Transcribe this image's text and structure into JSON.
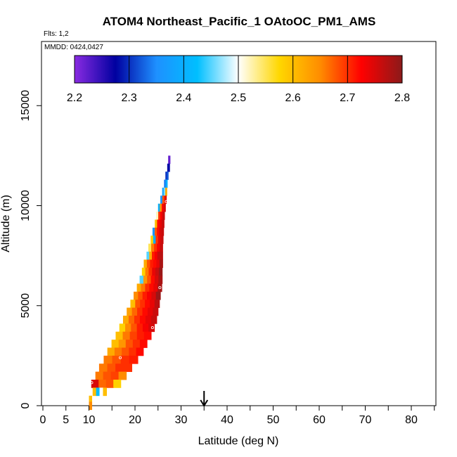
{
  "chart_data": {
    "type": "heatmap",
    "title": "ATOM4 Northeast_Pacific_1 OAtoOC_PM1_AMS",
    "flights_label": "Flts: 1,2",
    "dates_label": "MMDD: 0424,0427",
    "xlabel": "Latitude (deg N)",
    "ylabel": "Altitude (m)",
    "xlim": [
      0,
      85
    ],
    "ylim": [
      0,
      18000
    ],
    "x_ticks": [
      0,
      5,
      10,
      20,
      30,
      40,
      50,
      60,
      70,
      80
    ],
    "x_tick_labels": [
      "0",
      "5",
      "10",
      "20",
      "30",
      "40",
      "50",
      "60",
      "70",
      "80"
    ],
    "x_minor_ticks": [
      15,
      25,
      35,
      45,
      55,
      65,
      75,
      85
    ],
    "y_ticks": [
      0,
      5000,
      10000,
      15000
    ],
    "y_tick_labels": [
      "0",
      "5000",
      "10000",
      "15000"
    ],
    "colorbar": {
      "min": 2.2,
      "max": 2.8,
      "ticks": [
        2.2,
        2.3,
        2.4,
        2.5,
        2.6,
        2.7,
        2.8
      ],
      "tick_labels": [
        "2.2",
        "2.3",
        "2.4",
        "2.5",
        "2.6",
        "2.7",
        "2.8"
      ],
      "colors": [
        "#8a2be2",
        "#0000a0",
        "#1e90ff",
        "#00bfff",
        "#ffffff",
        "#ffd700",
        "#ff8c00",
        "#ff0000",
        "#8b1a1a"
      ]
    },
    "marker_latitude": 35,
    "profile": [
      {
        "alt": 12300,
        "lat_start": 27.2,
        "lat_end": 27.6,
        "values": [
          2.22
        ]
      },
      {
        "alt": 11900,
        "lat_start": 27.0,
        "lat_end": 27.5,
        "values": [
          2.28
        ]
      },
      {
        "alt": 11500,
        "lat_start": 26.6,
        "lat_end": 27.2,
        "values": [
          2.3,
          2.32
        ]
      },
      {
        "alt": 11100,
        "lat_start": 26.3,
        "lat_end": 27.0,
        "values": [
          2.34,
          2.4
        ]
      },
      {
        "alt": 10700,
        "lat_start": 25.9,
        "lat_end": 26.9,
        "values": [
          2.38,
          2.46,
          2.62
        ]
      },
      {
        "alt": 10300,
        "lat_start": 25.5,
        "lat_end": 26.8,
        "values": [
          2.36,
          2.68,
          2.74
        ]
      },
      {
        "alt": 9900,
        "lat_start": 25.0,
        "lat_end": 26.6,
        "values": [
          2.4,
          2.64,
          2.72,
          2.75
        ]
      },
      {
        "alt": 9500,
        "lat_start": 24.6,
        "lat_end": 26.4,
        "values": [
          2.52,
          2.7,
          2.73,
          2.76
        ]
      },
      {
        "alt": 9100,
        "lat_start": 24.3,
        "lat_end": 26.3,
        "values": [
          2.6,
          2.72,
          2.74,
          2.76
        ]
      },
      {
        "alt": 8700,
        "lat_start": 23.8,
        "lat_end": 26.2,
        "values": [
          2.36,
          2.68,
          2.72,
          2.75,
          2.76
        ]
      },
      {
        "alt": 8300,
        "lat_start": 23.4,
        "lat_end": 26.1,
        "values": [
          2.58,
          2.4,
          2.7,
          2.74,
          2.76
        ]
      },
      {
        "alt": 7900,
        "lat_start": 22.9,
        "lat_end": 26.0,
        "values": [
          2.55,
          2.66,
          2.7,
          2.73,
          2.76
        ]
      },
      {
        "alt": 7500,
        "lat_start": 22.5,
        "lat_end": 26.0,
        "values": [
          2.45,
          2.62,
          2.71,
          2.73,
          2.76,
          2.77
        ]
      },
      {
        "alt": 7100,
        "lat_start": 21.9,
        "lat_end": 26.0,
        "values": [
          2.62,
          2.68,
          2.71,
          2.72,
          2.74,
          2.78
        ]
      },
      {
        "alt": 6700,
        "lat_start": 21.5,
        "lat_end": 25.9,
        "values": [
          2.58,
          2.66,
          2.7,
          2.74,
          2.76,
          2.79
        ]
      },
      {
        "alt": 6300,
        "lat_start": 21.0,
        "lat_end": 25.9,
        "values": [
          2.45,
          2.64,
          2.68,
          2.72,
          2.75,
          2.78
        ]
      },
      {
        "alt": 5900,
        "lat_start": 20.4,
        "lat_end": 25.8,
        "values": [
          2.62,
          2.66,
          2.7,
          2.72,
          2.74,
          2.78
        ]
      },
      {
        "alt": 5500,
        "lat_start": 19.7,
        "lat_end": 25.5,
        "values": [
          2.65,
          2.68,
          2.71,
          2.73,
          2.75,
          2.79
        ]
      },
      {
        "alt": 5100,
        "lat_start": 19.0,
        "lat_end": 25.3,
        "values": [
          2.6,
          2.68,
          2.7,
          2.72,
          2.74,
          2.77
        ]
      },
      {
        "alt": 4700,
        "lat_start": 18.2,
        "lat_end": 25.0,
        "values": [
          2.63,
          2.67,
          2.7,
          2.72,
          2.74,
          2.76
        ]
      },
      {
        "alt": 4300,
        "lat_start": 17.4,
        "lat_end": 24.7,
        "values": [
          2.62,
          2.67,
          2.7,
          2.72,
          2.74,
          2.76
        ]
      },
      {
        "alt": 3900,
        "lat_start": 16.6,
        "lat_end": 24.2,
        "values": [
          2.58,
          2.65,
          2.68,
          2.71,
          2.73,
          2.75
        ]
      },
      {
        "alt": 3500,
        "lat_start": 15.8,
        "lat_end": 23.5,
        "values": [
          2.6,
          2.66,
          2.69,
          2.71,
          2.72
        ]
      },
      {
        "alt": 3100,
        "lat_start": 14.9,
        "lat_end": 22.6,
        "values": [
          2.6,
          2.64,
          2.68,
          2.7,
          2.72
        ]
      },
      {
        "alt": 2700,
        "lat_start": 14.0,
        "lat_end": 21.8,
        "values": [
          2.62,
          2.66,
          2.68,
          2.7,
          2.72
        ]
      },
      {
        "alt": 2300,
        "lat_start": 13.2,
        "lat_end": 20.6,
        "values": [
          2.66,
          2.68,
          2.7,
          2.71
        ]
      },
      {
        "alt": 1900,
        "lat_start": 12.2,
        "lat_end": 19.3,
        "values": [
          2.66,
          2.68,
          2.7,
          2.7
        ]
      },
      {
        "alt": 1500,
        "lat_start": 11.4,
        "lat_end": 18.1,
        "values": [
          2.66,
          2.68,
          2.69,
          2.65
        ]
      },
      {
        "alt": 1100,
        "lat_start": 10.5,
        "lat_end": 16.9,
        "values": [
          2.75,
          2.67,
          2.68,
          2.58
        ]
      },
      {
        "alt": 700,
        "lat_start": 10.8,
        "lat_end": 13.8,
        "values": [
          2.6,
          2.42,
          2.5,
          2.6
        ]
      },
      {
        "alt": 300,
        "lat_start": 10.0,
        "lat_end": 10.6,
        "values": [
          2.6
        ]
      },
      {
        "alt": 0,
        "lat_start": 10.0,
        "lat_end": 10.6,
        "values": [
          2.65
        ]
      }
    ],
    "open_circle_points": [
      {
        "lat": 10.6,
        "alt": 1150
      },
      {
        "lat": 16.8,
        "alt": 2400
      },
      {
        "lat": 23.8,
        "alt": 3900
      },
      {
        "lat": 25.4,
        "alt": 5900
      },
      {
        "lat": 26.8,
        "alt": 10200
      }
    ]
  }
}
